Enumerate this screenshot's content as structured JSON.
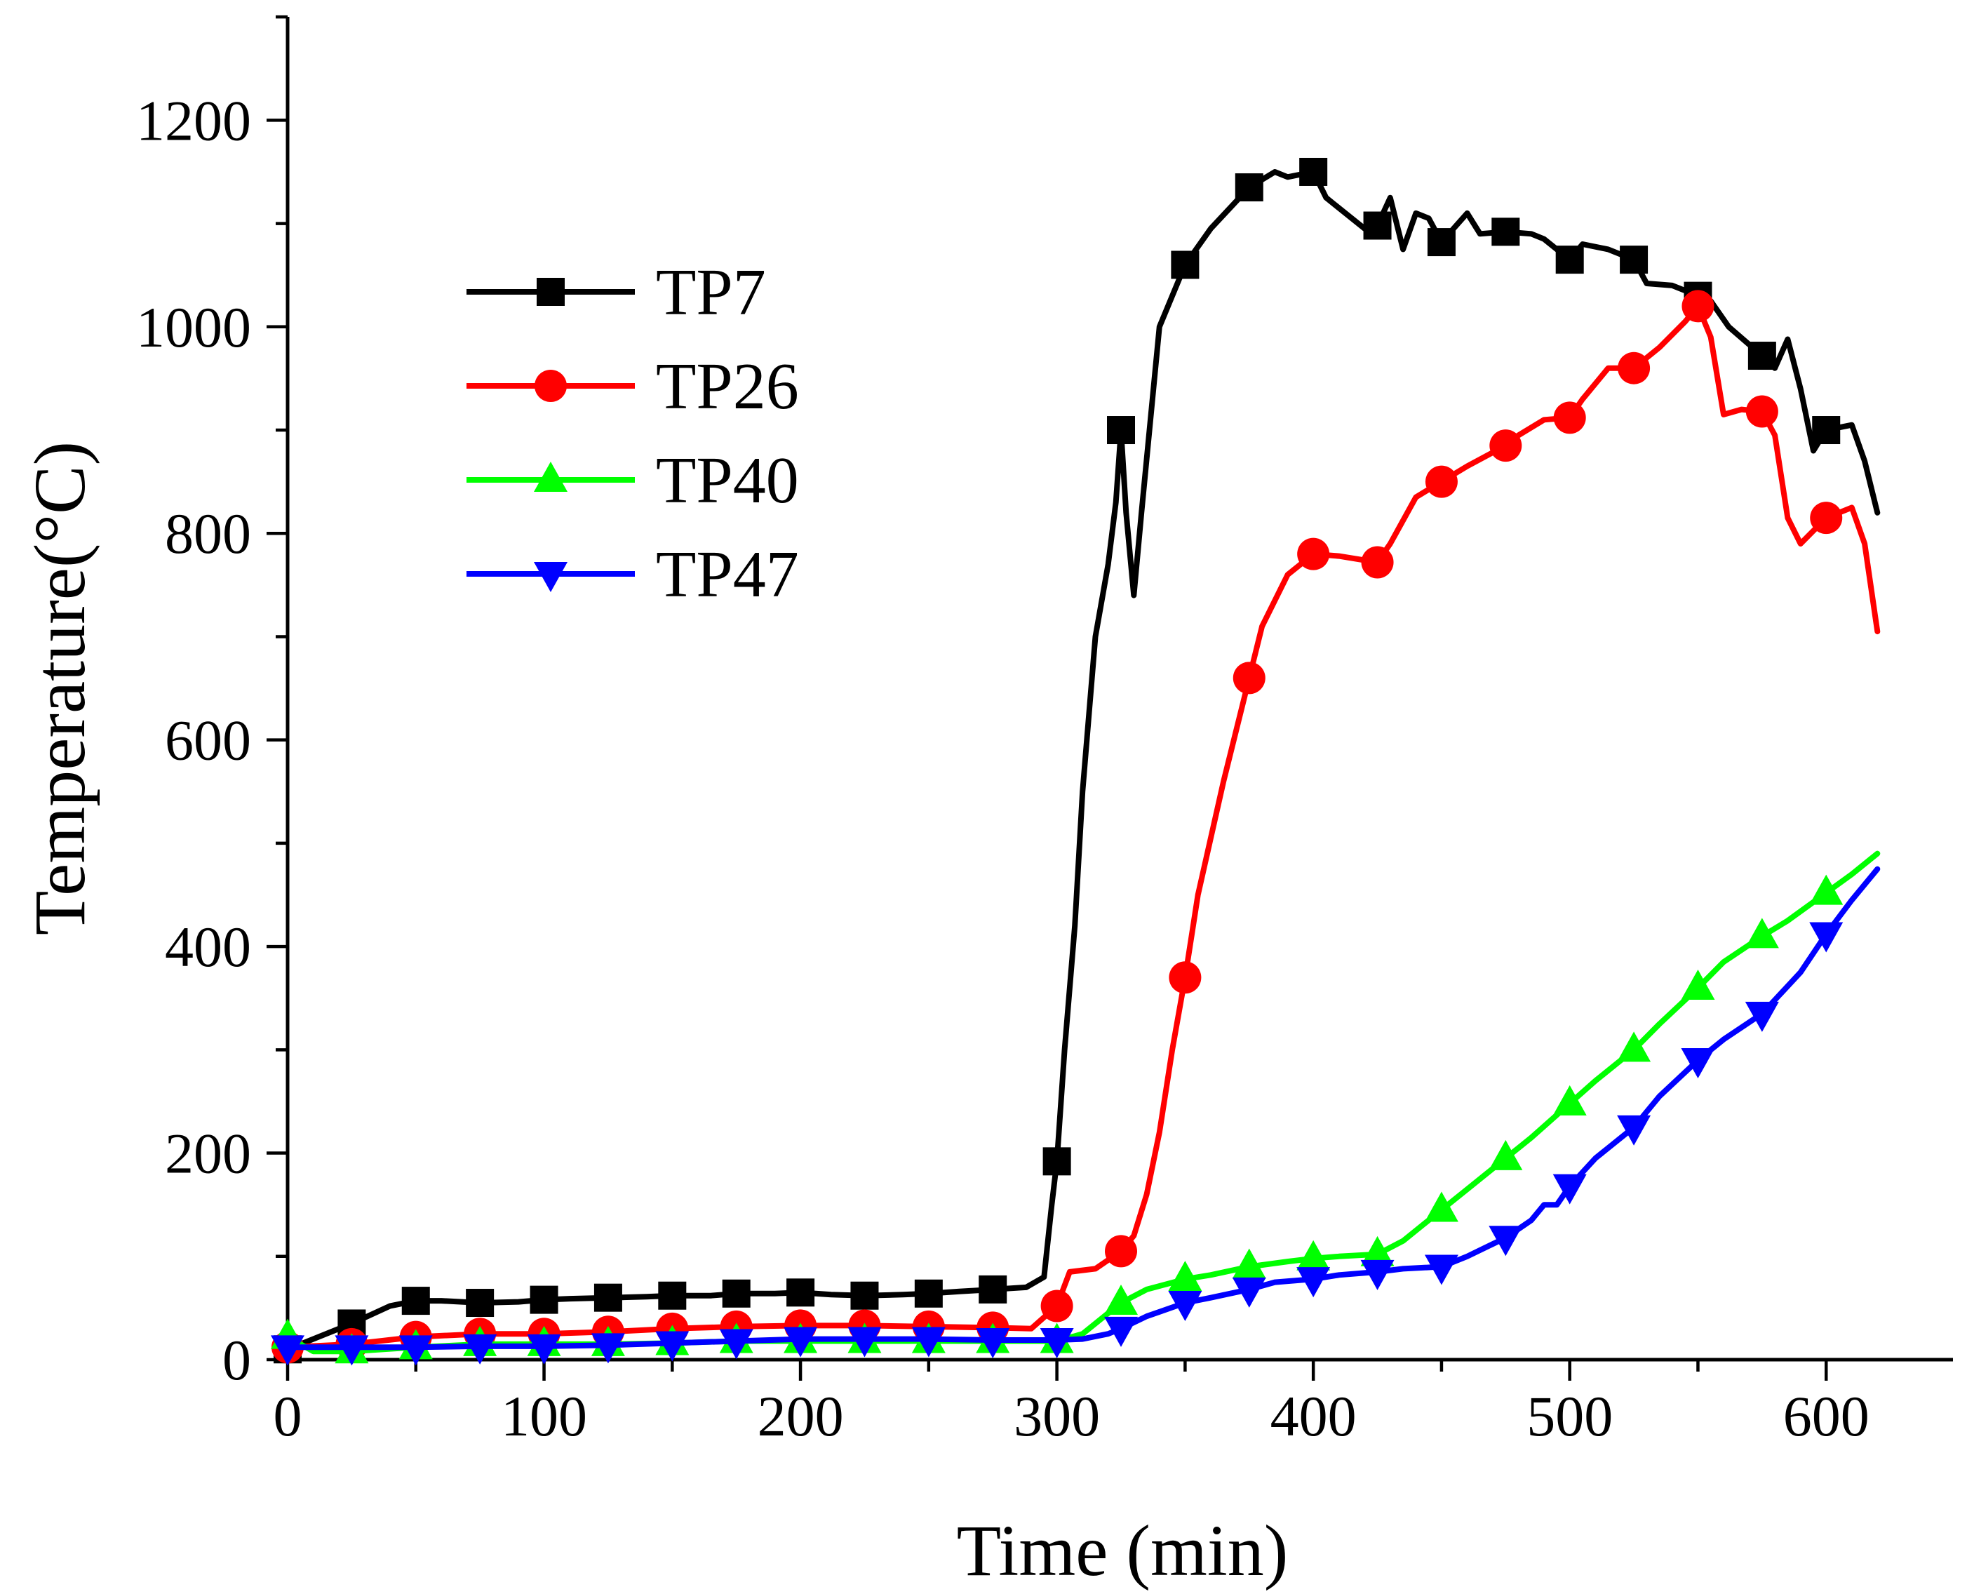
{
  "chart_data": {
    "type": "line",
    "title": "",
    "xlabel": "Time (min)",
    "ylabel": "Temperature(°C)",
    "xlim": [
      0,
      650
    ],
    "ylim": [
      0,
      1300
    ],
    "xticks": [
      0,
      100,
      200,
      300,
      400,
      500,
      600
    ],
    "yticks": [
      0,
      200,
      400,
      600,
      800,
      1000,
      1200
    ],
    "legend_position": "top-left",
    "series": [
      {
        "name": "TP7",
        "color": "#000000",
        "marker": "square",
        "line": [
          [
            0,
            10
          ],
          [
            25,
            35
          ],
          [
            40,
            52
          ],
          [
            50,
            57
          ],
          [
            60,
            57
          ],
          [
            75,
            55
          ],
          [
            90,
            56
          ],
          [
            100,
            58
          ],
          [
            110,
            59
          ],
          [
            125,
            60
          ],
          [
            140,
            61
          ],
          [
            150,
            62
          ],
          [
            165,
            62
          ],
          [
            175,
            64
          ],
          [
            190,
            64
          ],
          [
            200,
            65
          ],
          [
            212,
            63
          ],
          [
            225,
            62
          ],
          [
            240,
            63
          ],
          [
            250,
            64
          ],
          [
            262,
            66
          ],
          [
            275,
            68
          ],
          [
            288,
            70
          ],
          [
            295,
            80
          ],
          [
            298,
            150
          ],
          [
            300,
            192
          ],
          [
            303,
            300
          ],
          [
            307,
            420
          ],
          [
            310,
            550
          ],
          [
            315,
            700
          ],
          [
            320,
            770
          ],
          [
            323,
            830
          ],
          [
            325,
            900
          ],
          [
            327,
            820
          ],
          [
            330,
            740
          ],
          [
            333,
            820
          ],
          [
            340,
            1000
          ],
          [
            350,
            1060
          ],
          [
            360,
            1095
          ],
          [
            375,
            1135
          ],
          [
            385,
            1150
          ],
          [
            390,
            1145
          ],
          [
            400,
            1150
          ],
          [
            405,
            1125
          ],
          [
            410,
            1115
          ],
          [
            420,
            1095
          ],
          [
            425,
            1098
          ],
          [
            430,
            1125
          ],
          [
            435,
            1075
          ],
          [
            440,
            1110
          ],
          [
            445,
            1105
          ],
          [
            450,
            1082
          ],
          [
            460,
            1110
          ],
          [
            465,
            1090
          ],
          [
            475,
            1092
          ],
          [
            485,
            1090
          ],
          [
            490,
            1085
          ],
          [
            500,
            1065
          ],
          [
            505,
            1080
          ],
          [
            515,
            1075
          ],
          [
            525,
            1065
          ],
          [
            530,
            1042
          ],
          [
            540,
            1040
          ],
          [
            550,
            1030
          ],
          [
            555,
            1025
          ],
          [
            562,
            1000
          ],
          [
            575,
            972
          ],
          [
            580,
            960
          ],
          [
            585,
            988
          ],
          [
            590,
            940
          ],
          [
            595,
            880
          ],
          [
            600,
            900
          ],
          [
            610,
            905
          ],
          [
            615,
            870
          ],
          [
            620,
            820
          ]
        ],
        "markers": [
          [
            0,
            10
          ],
          [
            25,
            35
          ],
          [
            50,
            57
          ],
          [
            75,
            55
          ],
          [
            100,
            58
          ],
          [
            125,
            60
          ],
          [
            150,
            62
          ],
          [
            175,
            64
          ],
          [
            200,
            65
          ],
          [
            225,
            62
          ],
          [
            250,
            64
          ],
          [
            275,
            68
          ],
          [
            300,
            192
          ],
          [
            325,
            900
          ],
          [
            350,
            1060
          ],
          [
            375,
            1135
          ],
          [
            400,
            1150
          ],
          [
            425,
            1098
          ],
          [
            450,
            1082
          ],
          [
            475,
            1092
          ],
          [
            500,
            1065
          ],
          [
            525,
            1065
          ],
          [
            550,
            1030
          ],
          [
            575,
            972
          ],
          [
            600,
            900
          ]
        ]
      },
      {
        "name": "TP26",
        "color": "#ff0000",
        "marker": "circle",
        "line": [
          [
            0,
            12
          ],
          [
            25,
            15
          ],
          [
            50,
            22
          ],
          [
            75,
            25
          ],
          [
            100,
            25
          ],
          [
            125,
            27
          ],
          [
            150,
            30
          ],
          [
            175,
            32
          ],
          [
            200,
            33
          ],
          [
            225,
            33
          ],
          [
            250,
            32
          ],
          [
            275,
            31
          ],
          [
            290,
            30
          ],
          [
            300,
            52
          ],
          [
            305,
            85
          ],
          [
            315,
            88
          ],
          [
            325,
            105
          ],
          [
            330,
            120
          ],
          [
            335,
            160
          ],
          [
            340,
            220
          ],
          [
            345,
            300
          ],
          [
            350,
            370
          ],
          [
            355,
            450
          ],
          [
            365,
            560
          ],
          [
            375,
            660
          ],
          [
            380,
            710
          ],
          [
            390,
            760
          ],
          [
            400,
            780
          ],
          [
            410,
            778
          ],
          [
            425,
            772
          ],
          [
            430,
            790
          ],
          [
            440,
            835
          ],
          [
            450,
            850
          ],
          [
            460,
            865
          ],
          [
            475,
            885
          ],
          [
            480,
            895
          ],
          [
            490,
            910
          ],
          [
            500,
            912
          ],
          [
            505,
            930
          ],
          [
            515,
            960
          ],
          [
            525,
            960
          ],
          [
            535,
            980
          ],
          [
            545,
            1005
          ],
          [
            550,
            1020
          ],
          [
            555,
            990
          ],
          [
            560,
            915
          ],
          [
            567,
            920
          ],
          [
            575,
            918
          ],
          [
            580,
            895
          ],
          [
            585,
            815
          ],
          [
            590,
            790
          ],
          [
            600,
            815
          ],
          [
            610,
            825
          ],
          [
            615,
            790
          ],
          [
            620,
            705
          ]
        ],
        "markers": [
          [
            0,
            12
          ],
          [
            25,
            15
          ],
          [
            50,
            22
          ],
          [
            75,
            25
          ],
          [
            100,
            25
          ],
          [
            125,
            27
          ],
          [
            150,
            30
          ],
          [
            175,
            32
          ],
          [
            200,
            33
          ],
          [
            225,
            33
          ],
          [
            250,
            32
          ],
          [
            275,
            31
          ],
          [
            300,
            52
          ],
          [
            325,
            105
          ],
          [
            350,
            370
          ],
          [
            375,
            660
          ],
          [
            400,
            780
          ],
          [
            425,
            772
          ],
          [
            450,
            850
          ],
          [
            475,
            885
          ],
          [
            500,
            912
          ],
          [
            525,
            960
          ],
          [
            550,
            1020
          ],
          [
            575,
            918
          ],
          [
            600,
            815
          ]
        ]
      },
      {
        "name": "TP40",
        "color": "#00ff00",
        "marker": "triangle-up",
        "line": [
          [
            0,
            22
          ],
          [
            10,
            8
          ],
          [
            25,
            8
          ],
          [
            50,
            12
          ],
          [
            75,
            15
          ],
          [
            100,
            15
          ],
          [
            125,
            15
          ],
          [
            150,
            16
          ],
          [
            175,
            18
          ],
          [
            200,
            18
          ],
          [
            225,
            18
          ],
          [
            250,
            18
          ],
          [
            275,
            18
          ],
          [
            300,
            18
          ],
          [
            310,
            25
          ],
          [
            320,
            45
          ],
          [
            325,
            55
          ],
          [
            335,
            68
          ],
          [
            350,
            78
          ],
          [
            360,
            82
          ],
          [
            375,
            90
          ],
          [
            390,
            95
          ],
          [
            400,
            98
          ],
          [
            410,
            100
          ],
          [
            425,
            102
          ],
          [
            435,
            115
          ],
          [
            450,
            145
          ],
          [
            460,
            165
          ],
          [
            475,
            195
          ],
          [
            485,
            215
          ],
          [
            500,
            248
          ],
          [
            510,
            270
          ],
          [
            525,
            300
          ],
          [
            535,
            325
          ],
          [
            550,
            360
          ],
          [
            560,
            385
          ],
          [
            575,
            410
          ],
          [
            585,
            425
          ],
          [
            600,
            452
          ],
          [
            610,
            470
          ],
          [
            620,
            490
          ]
        ],
        "markers": [
          [
            0,
            22
          ],
          [
            25,
            8
          ],
          [
            50,
            12
          ],
          [
            75,
            15
          ],
          [
            100,
            15
          ],
          [
            125,
            15
          ],
          [
            150,
            16
          ],
          [
            175,
            18
          ],
          [
            200,
            18
          ],
          [
            225,
            18
          ],
          [
            250,
            18
          ],
          [
            275,
            18
          ],
          [
            300,
            18
          ],
          [
            325,
            55
          ],
          [
            350,
            78
          ],
          [
            375,
            90
          ],
          [
            400,
            98
          ],
          [
            425,
            102
          ],
          [
            450,
            145
          ],
          [
            475,
            195
          ],
          [
            500,
            248
          ],
          [
            525,
            300
          ],
          [
            550,
            360
          ],
          [
            575,
            410
          ],
          [
            600,
            452
          ]
        ]
      },
      {
        "name": "TP47",
        "color": "#0000ff",
        "marker": "triangle-down",
        "line": [
          [
            0,
            12
          ],
          [
            25,
            12
          ],
          [
            50,
            12
          ],
          [
            75,
            13
          ],
          [
            100,
            13
          ],
          [
            125,
            14
          ],
          [
            150,
            16
          ],
          [
            175,
            18
          ],
          [
            200,
            20
          ],
          [
            225,
            20
          ],
          [
            250,
            20
          ],
          [
            275,
            19
          ],
          [
            300,
            19
          ],
          [
            310,
            20
          ],
          [
            320,
            25
          ],
          [
            325,
            30
          ],
          [
            335,
            42
          ],
          [
            350,
            55
          ],
          [
            360,
            60
          ],
          [
            375,
            68
          ],
          [
            385,
            75
          ],
          [
            400,
            78
          ],
          [
            410,
            82
          ],
          [
            425,
            85
          ],
          [
            435,
            88
          ],
          [
            450,
            90
          ],
          [
            460,
            100
          ],
          [
            470,
            112
          ],
          [
            475,
            118
          ],
          [
            485,
            135
          ],
          [
            490,
            150
          ],
          [
            495,
            150
          ],
          [
            500,
            168
          ],
          [
            510,
            195
          ],
          [
            525,
            225
          ],
          [
            535,
            255
          ],
          [
            550,
            290
          ],
          [
            560,
            310
          ],
          [
            575,
            335
          ],
          [
            590,
            375
          ],
          [
            600,
            412
          ],
          [
            610,
            445
          ],
          [
            620,
            475
          ]
        ],
        "markers": [
          [
            0,
            12
          ],
          [
            25,
            12
          ],
          [
            50,
            12
          ],
          [
            75,
            13
          ],
          [
            100,
            13
          ],
          [
            125,
            14
          ],
          [
            150,
            16
          ],
          [
            175,
            18
          ],
          [
            200,
            20
          ],
          [
            225,
            20
          ],
          [
            250,
            20
          ],
          [
            275,
            19
          ],
          [
            300,
            19
          ],
          [
            325,
            30
          ],
          [
            350,
            55
          ],
          [
            375,
            68
          ],
          [
            400,
            78
          ],
          [
            425,
            85
          ],
          [
            450,
            90
          ],
          [
            475,
            118
          ],
          [
            500,
            168
          ],
          [
            525,
            225
          ],
          [
            550,
            290
          ],
          [
            575,
            335
          ],
          [
            600,
            412
          ]
        ]
      }
    ]
  }
}
